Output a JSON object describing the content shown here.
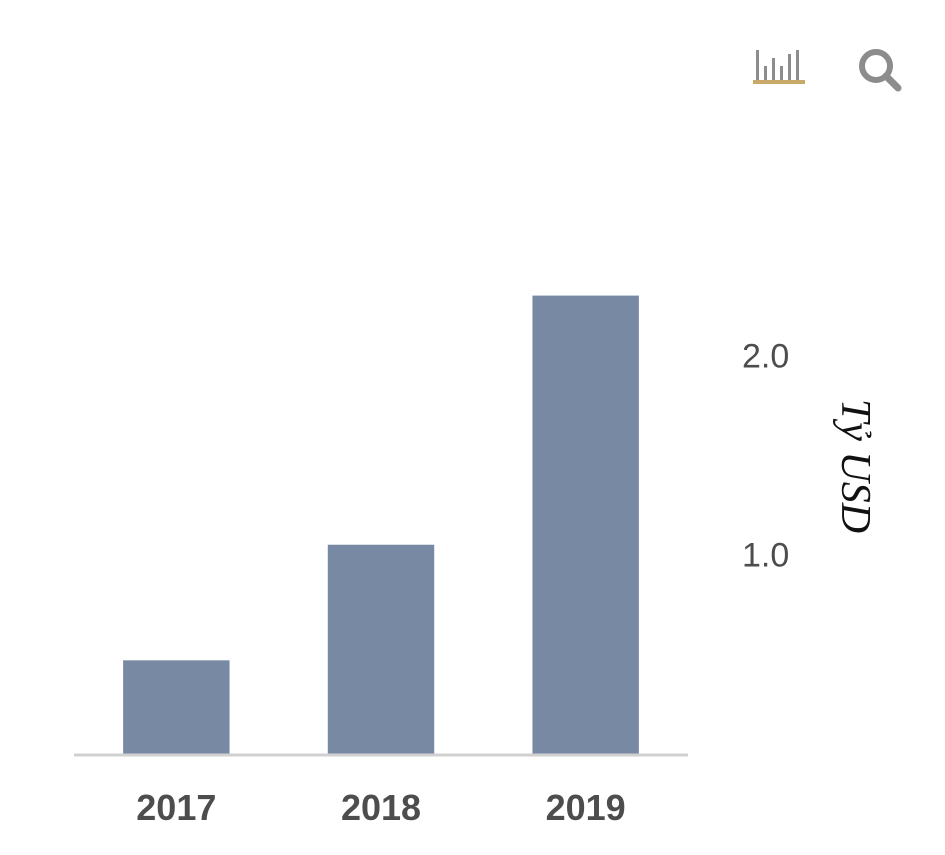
{
  "toolbar": {
    "chart_icon": "bar-chart-icon",
    "search_icon": "search-icon"
  },
  "colors": {
    "bar": "#7889a4",
    "axis": "#d0d0d0",
    "icon": "#8c8c8c",
    "icon_underline": "#c8a96a"
  },
  "chart_data": {
    "type": "bar",
    "categories": [
      "2017",
      "2018",
      "2019"
    ],
    "values": [
      0.47,
      1.05,
      2.3
    ],
    "ylabel": "Tỷ USD",
    "yticks": [
      1.0,
      2.0
    ],
    "ytick_labels": [
      "1.0",
      "2.0"
    ],
    "ylim": [
      0,
      2.9
    ],
    "grid": false,
    "y_axis_side": "right"
  }
}
